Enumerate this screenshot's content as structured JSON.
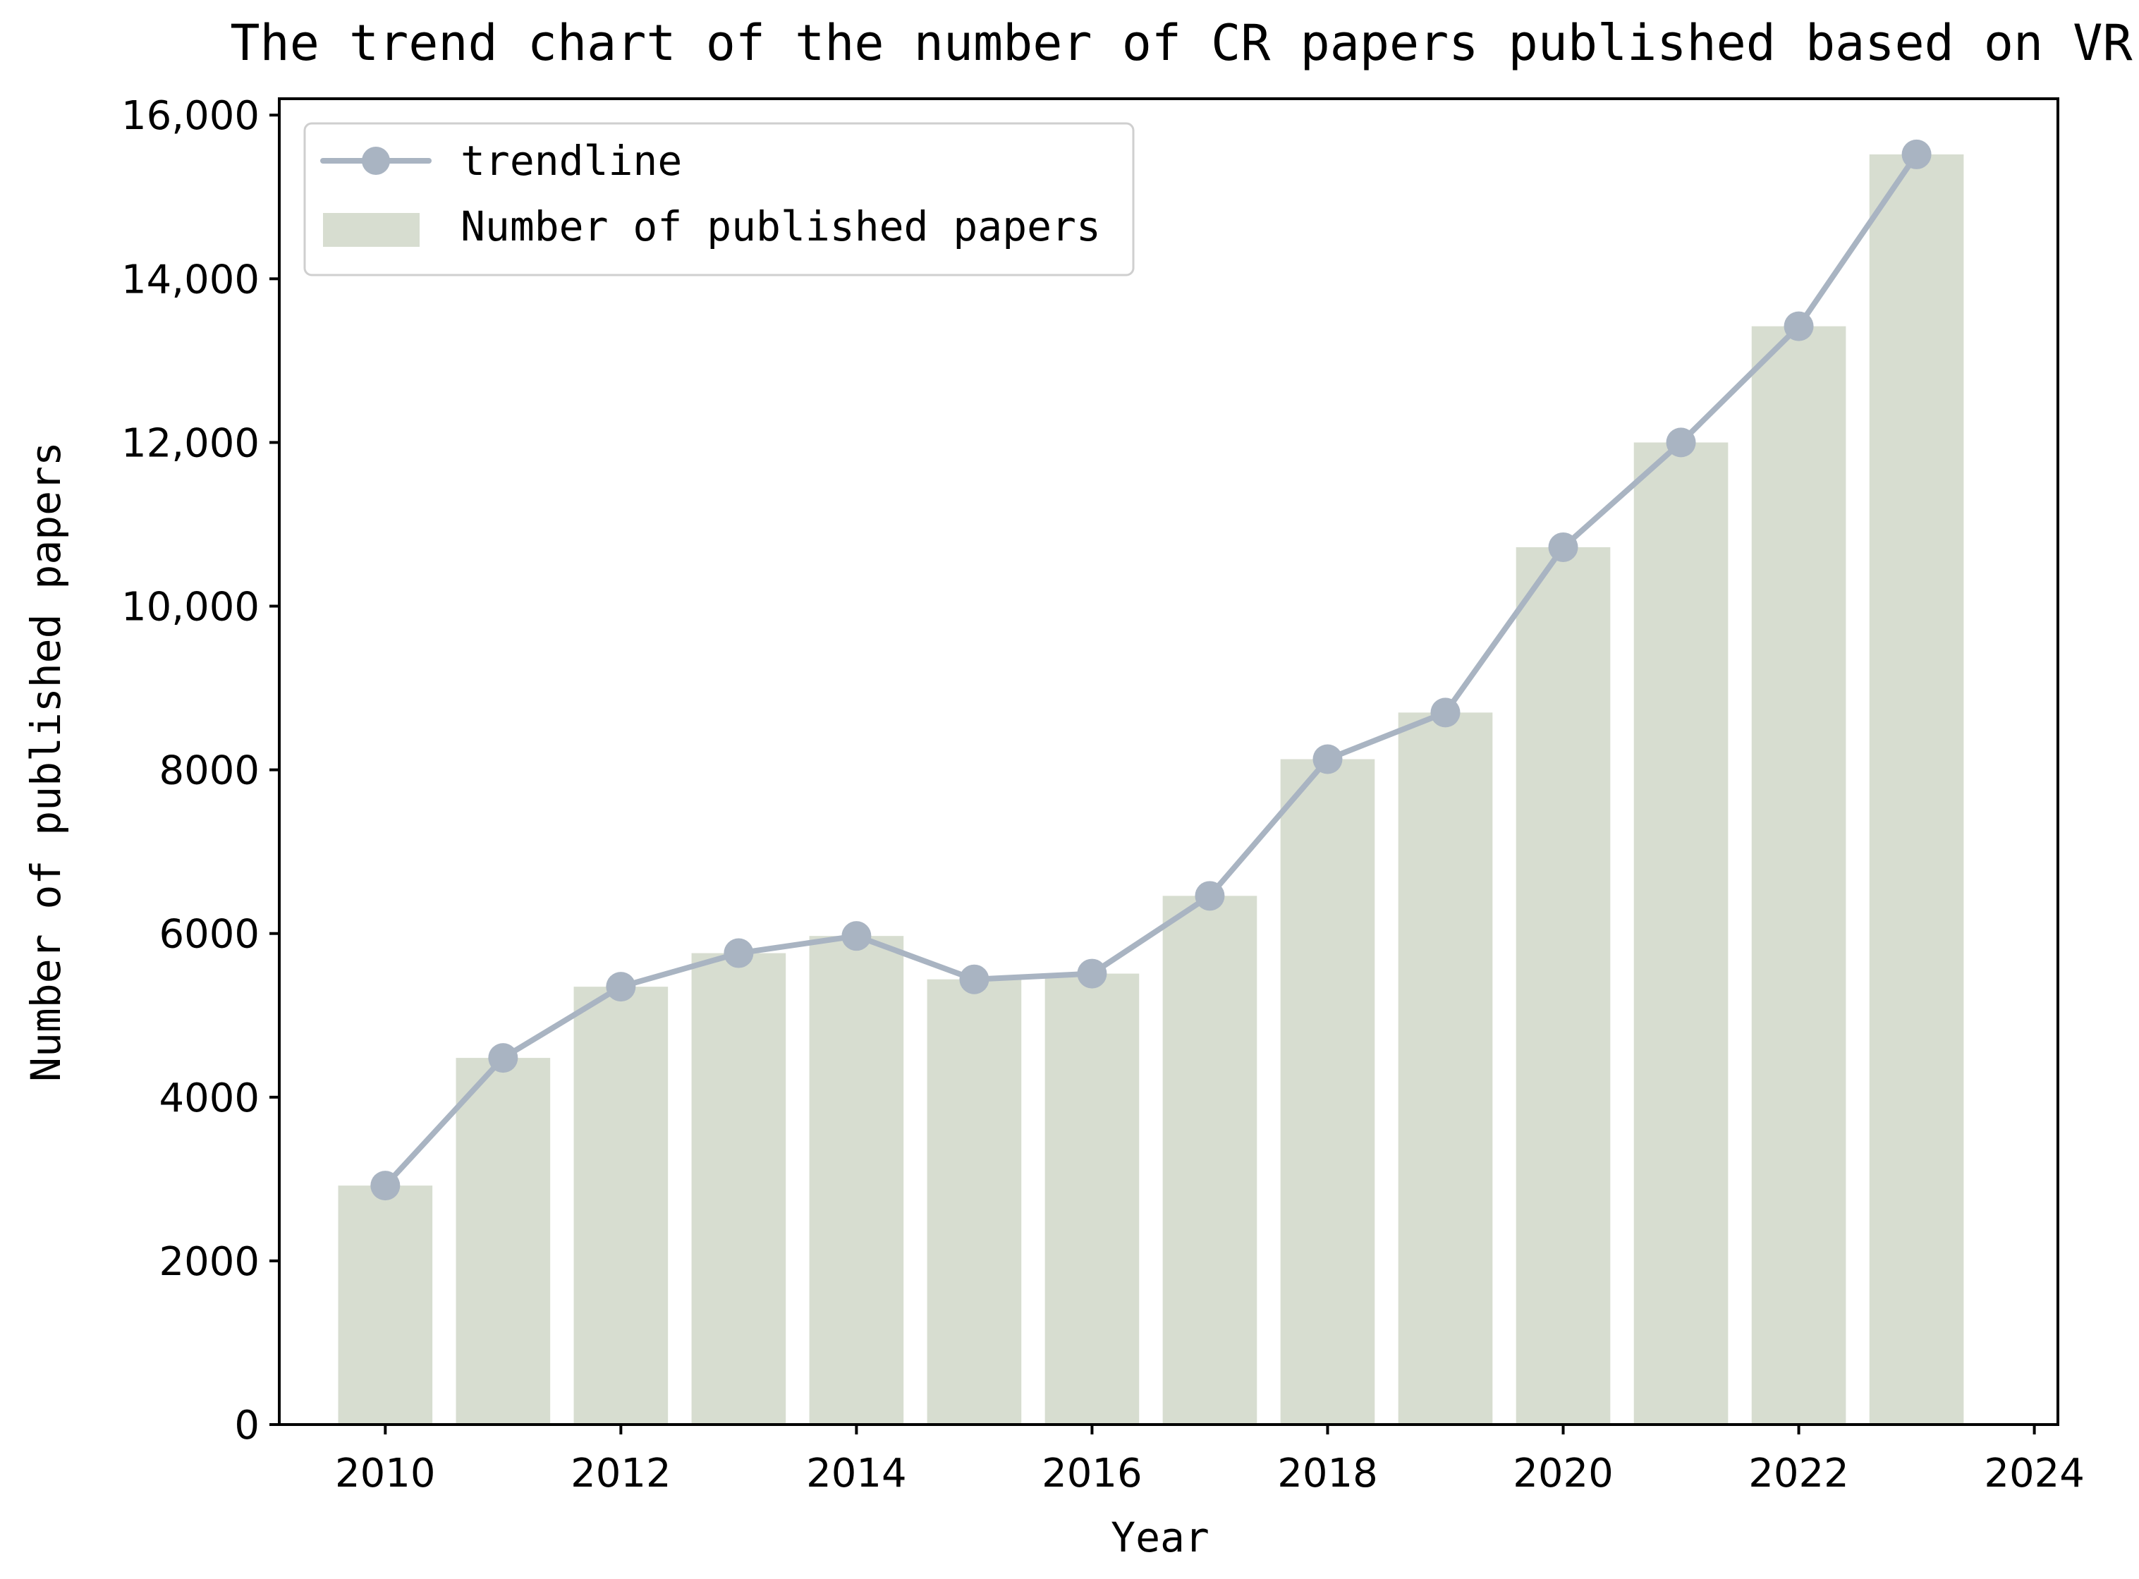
{
  "chart_data": {
    "type": "bar",
    "title": "The trend chart of the number of CR papers published based on VR",
    "xlabel": "Year",
    "ylabel": "Number of published papers",
    "x": [
      2010,
      2011,
      2012,
      2013,
      2014,
      2015,
      2016,
      2017,
      2018,
      2019,
      2020,
      2021,
      2022,
      2023
    ],
    "series": [
      {
        "name": "Number of published papers",
        "type": "bar",
        "color": "#d7ddd0",
        "values": [
          2920,
          4480,
          5350,
          5760,
          5970,
          5440,
          5510,
          6460,
          8130,
          8700,
          10720,
          12000,
          13420,
          15520
        ]
      },
      {
        "name": "trendline",
        "type": "line",
        "color": "#a9b4c2",
        "values": [
          2920,
          4480,
          5350,
          5760,
          5970,
          5440,
          5510,
          6460,
          8130,
          8700,
          10720,
          12000,
          13420,
          15520
        ]
      }
    ],
    "xlim": [
      2009.1,
      2024.2
    ],
    "ylim": [
      0,
      16200
    ],
    "xticks": [
      "2010",
      "2012",
      "2014",
      "2016",
      "2018",
      "2020",
      "2022",
      "2024"
    ],
    "yticks": [
      "0",
      "2000",
      "4000",
      "6000",
      "8000",
      "10,000",
      "12,000",
      "14,000",
      "16,000"
    ],
    "grid": false,
    "legend_position": "top-left"
  }
}
